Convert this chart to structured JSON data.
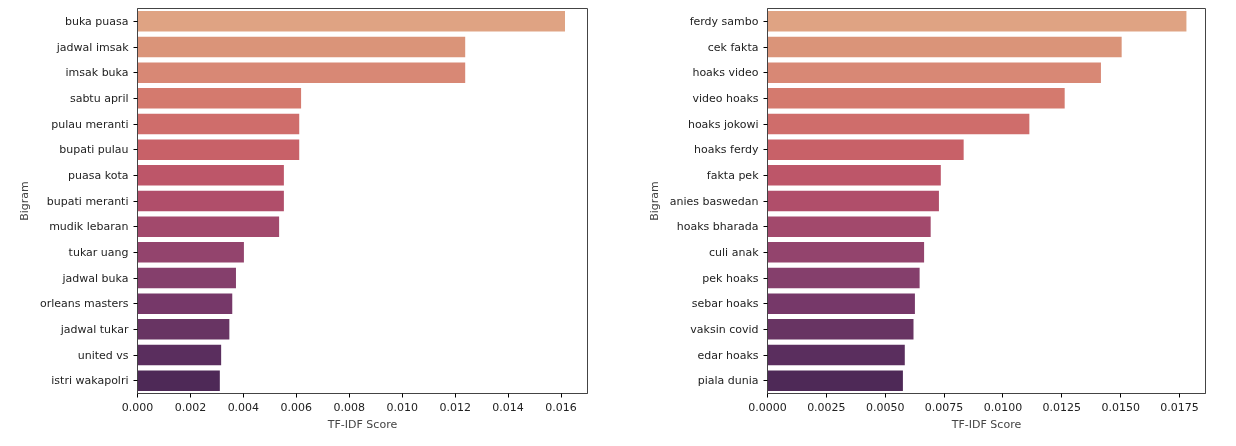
{
  "chart_data": [
    {
      "type": "bar",
      "orientation": "horizontal",
      "xlabel": "TF-IDF Score",
      "ylabel": "Bigram",
      "grid": false,
      "categories": [
        "buka puasa",
        "jadwal imsak",
        "imsak buka",
        "sabtu april",
        "pulau meranti",
        "bupati pulau",
        "puasa kota",
        "bupati meranti",
        "mudik lebaran",
        "tukar uang",
        "jadwal buka",
        "orleans masters",
        "jadwal tukar",
        "united vs",
        "istri wakapolri"
      ],
      "values": [
        0.01615,
        0.01238,
        0.01238,
        0.00618,
        0.00611,
        0.00611,
        0.00553,
        0.00553,
        0.00535,
        0.00402,
        0.00372,
        0.00358,
        0.00347,
        0.00316,
        0.00311
      ],
      "colors": [
        "#dfa383",
        "#da9479",
        "#d88875",
        "#d47a6e",
        "#cf6d6b",
        "#c86168",
        "#bd5669",
        "#b04e6a",
        "#a2496c",
        "#93446d",
        "#853f6c",
        "#763869",
        "#683463",
        "#5a2e5e",
        "#4e2957"
      ],
      "xlim": [
        0,
        0.017
      ],
      "xticks": [
        {
          "value": 0,
          "label": "0.000"
        },
        {
          "value": 0.002,
          "label": "0.002"
        },
        {
          "value": 0.004,
          "label": "0.004"
        },
        {
          "value": 0.006,
          "label": "0.006"
        },
        {
          "value": 0.008,
          "label": "0.008"
        },
        {
          "value": 0.01,
          "label": "0.010"
        },
        {
          "value": 0.012,
          "label": "0.012"
        },
        {
          "value": 0.014,
          "label": "0.014"
        },
        {
          "value": 0.016,
          "label": "0.016"
        }
      ]
    },
    {
      "type": "bar",
      "orientation": "horizontal",
      "xlabel": "TF-IDF Score",
      "ylabel": "Bigram",
      "grid": false,
      "categories": [
        "ferdy sambo",
        "cek fakta",
        "hoaks video",
        "video hoaks",
        "hoaks jokowi",
        "hoaks ferdy",
        "fakta pek",
        "anies baswedan",
        "hoaks bharada",
        "culi anak",
        "pek hoaks",
        "sebar hoaks",
        "vaksin covid",
        "edar hoaks",
        "piala dunia"
      ],
      "values": [
        0.01779,
        0.01504,
        0.01416,
        0.01262,
        0.01112,
        0.00833,
        0.00736,
        0.00728,
        0.00693,
        0.00665,
        0.00646,
        0.00626,
        0.0062,
        0.00583,
        0.00575
      ],
      "colors": [
        "#dfa383",
        "#da9479",
        "#d88875",
        "#d47a6e",
        "#cf6d6b",
        "#c86168",
        "#bd5669",
        "#b04e6a",
        "#a2496c",
        "#93446d",
        "#853f6c",
        "#763869",
        "#683463",
        "#5a2e5e",
        "#4e2957"
      ],
      "xlim": [
        0,
        0.0186
      ],
      "xticks": [
        {
          "value": 0,
          "label": "0.0000"
        },
        {
          "value": 0.0025,
          "label": "0.0025"
        },
        {
          "value": 0.005,
          "label": "0.0050"
        },
        {
          "value": 0.0075,
          "label": "0.0075"
        },
        {
          "value": 0.01,
          "label": "0.0100"
        },
        {
          "value": 0.0125,
          "label": "0.0125"
        },
        {
          "value": 0.015,
          "label": "0.0150"
        },
        {
          "value": 0.0175,
          "label": "0.0175"
        }
      ]
    }
  ]
}
